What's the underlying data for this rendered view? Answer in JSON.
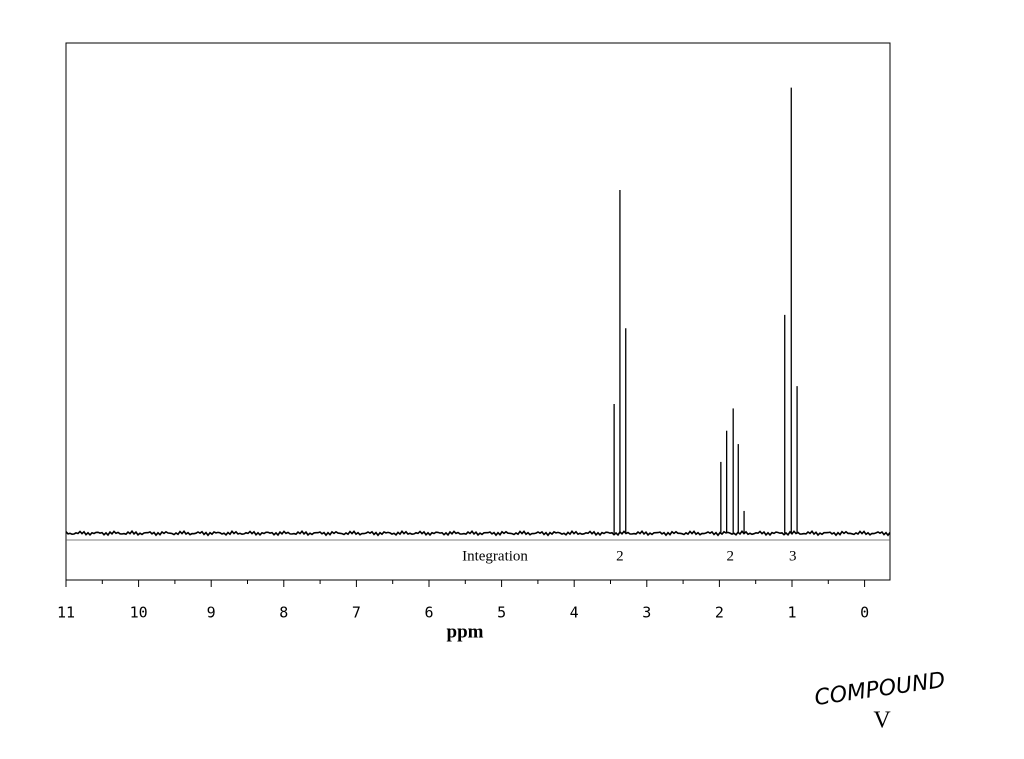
{
  "chart_data": {
    "type": "spectrum",
    "xlabel": "ppm",
    "xlim": [
      11,
      -0.35
    ],
    "xticks": [
      11,
      10,
      9,
      8,
      7,
      6,
      5,
      4,
      3,
      2,
      1,
      0
    ],
    "ylim": [
      -10.5,
      110
    ],
    "color": "#000000",
    "peaks": {
      "x": [
        3.45,
        3.37,
        3.29,
        1.98,
        1.9,
        1.81,
        1.74,
        1.66,
        1.1,
        1.01,
        0.93
      ],
      "values": [
        29,
        77,
        46,
        16,
        23,
        28,
        20,
        5,
        49,
        100,
        33
      ]
    },
    "integration": {
      "label": "Integration",
      "positions": [
        3.37,
        1.85,
        0.99
      ],
      "values": [
        2,
        2,
        3
      ]
    },
    "annotations": [
      "COMPOUND",
      "V"
    ]
  }
}
